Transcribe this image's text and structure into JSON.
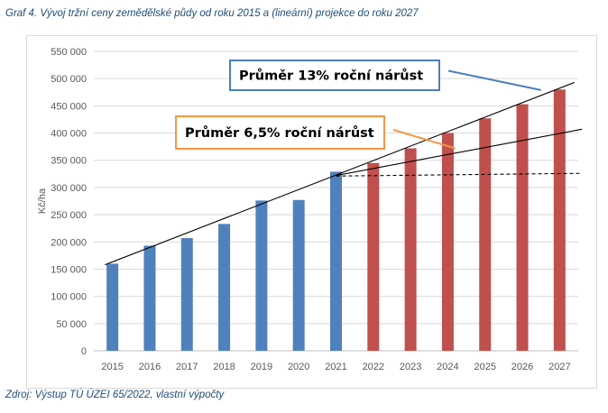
{
  "caption": "Graf 4. Vývoj tržní ceny zemědělské půdy od roku 2015 a (lineární) projekce do roku 2027",
  "source": "Zdroj: Výstup TÚ ÚZEI 65/2022, vlastní výpočty",
  "colors": {
    "actual": "#4f81bd",
    "projected": "#c0504d",
    "box13": "#4a7ebb",
    "box65": "#f79646"
  },
  "chart_data": {
    "type": "bar",
    "ylabel": "Kč/ha",
    "ylim": [
      0,
      550000
    ],
    "yticks": [
      0,
      50000,
      100000,
      150000,
      200000,
      250000,
      300000,
      350000,
      400000,
      450000,
      500000,
      550000
    ],
    "ytick_labels": [
      "0",
      "50 000",
      "100 000",
      "150 000",
      "200 000",
      "250 000",
      "300 000",
      "350 000",
      "400 000",
      "450 000",
      "500 000",
      "550 000"
    ],
    "categories": [
      "2015",
      "2016",
      "2017",
      "2018",
      "2019",
      "2020",
      "2021",
      "2022",
      "2023",
      "2024",
      "2025",
      "2026",
      "2027"
    ],
    "values": [
      160000,
      193000,
      207000,
      233000,
      276000,
      277000,
      329000,
      345000,
      372000,
      400000,
      427000,
      453000,
      480000
    ],
    "bar_types": [
      "actual",
      "actual",
      "actual",
      "actual",
      "actual",
      "actual",
      "actual",
      "projected",
      "projected",
      "projected",
      "projected",
      "projected",
      "projected"
    ],
    "grid": true,
    "trend_lines": [
      {
        "style": "solid",
        "from_year": 2014.8,
        "from_value": 158000,
        "to_year": 2027.4,
        "to_value": 493000
      },
      {
        "style": "solid",
        "from_year": 2021,
        "from_value": 322000,
        "to_year": 2027.6,
        "to_value": 407000
      },
      {
        "style": "dashed",
        "from_year": 2021,
        "from_value": 321000,
        "to_year": 2027.6,
        "to_value": 326000
      }
    ],
    "annotations": [
      {
        "text": "Průměr 13% roční nárůst",
        "border": "box13",
        "arrow_to_year": 2026.5,
        "arrow_to_value": 479000
      },
      {
        "text": "Průměr 6,5% roční nárůst",
        "border": "box65",
        "arrow_to_year": 2024.2,
        "arrow_to_value": 372000
      }
    ]
  }
}
